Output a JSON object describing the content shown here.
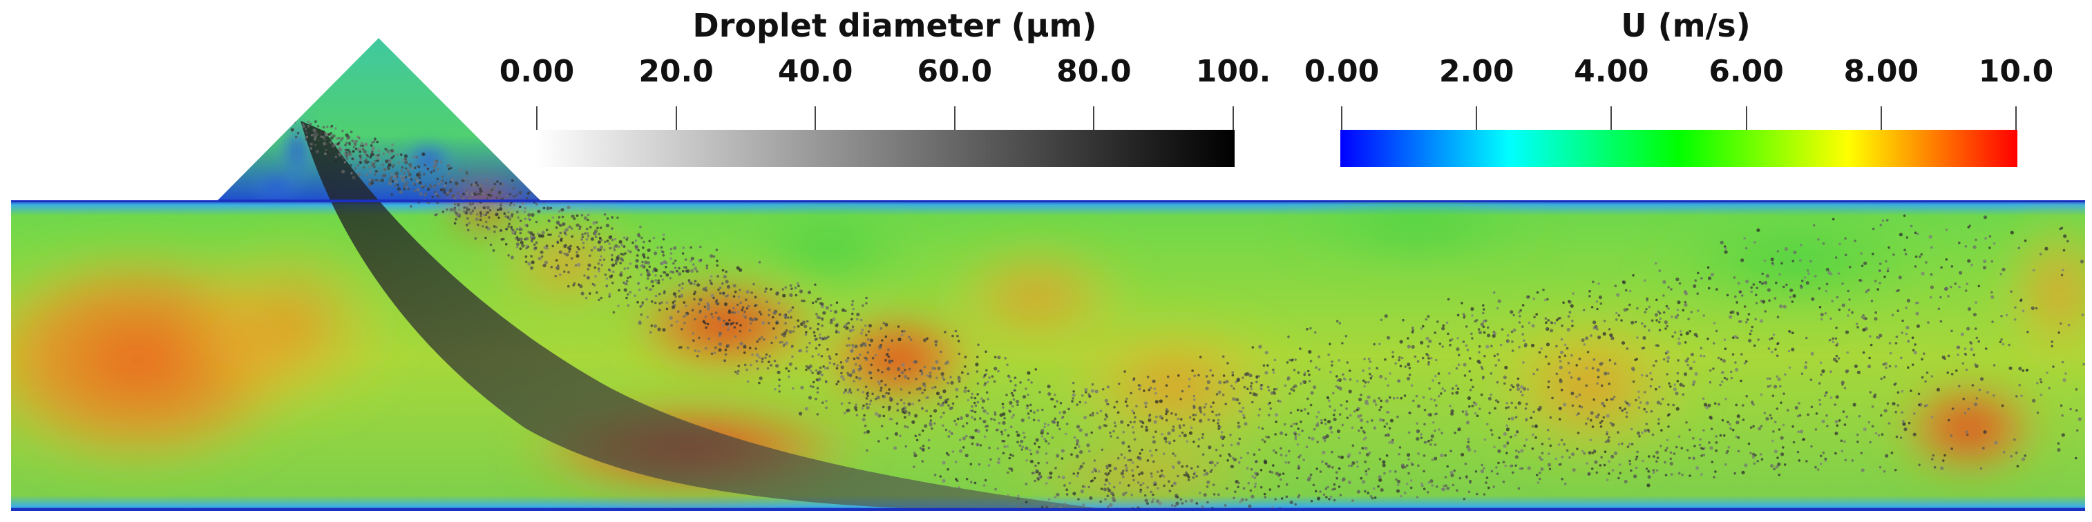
{
  "colorbars": {
    "droplet": {
      "title": "Droplet diameter (µm)",
      "ticks": [
        "0.00",
        "20.0",
        "40.0",
        "60.0",
        "80.0",
        "100."
      ],
      "colors": [
        "#ffffff",
        "#000000"
      ]
    },
    "velocity": {
      "title": "U (m/s)",
      "ticks": [
        "0.00",
        "2.00",
        "4.00",
        "6.00",
        "8.00",
        "10.0"
      ],
      "colors": [
        "#0000ff",
        "#00ffff",
        "#00ff00",
        "#ffff00",
        "#ff0000"
      ]
    }
  }
}
